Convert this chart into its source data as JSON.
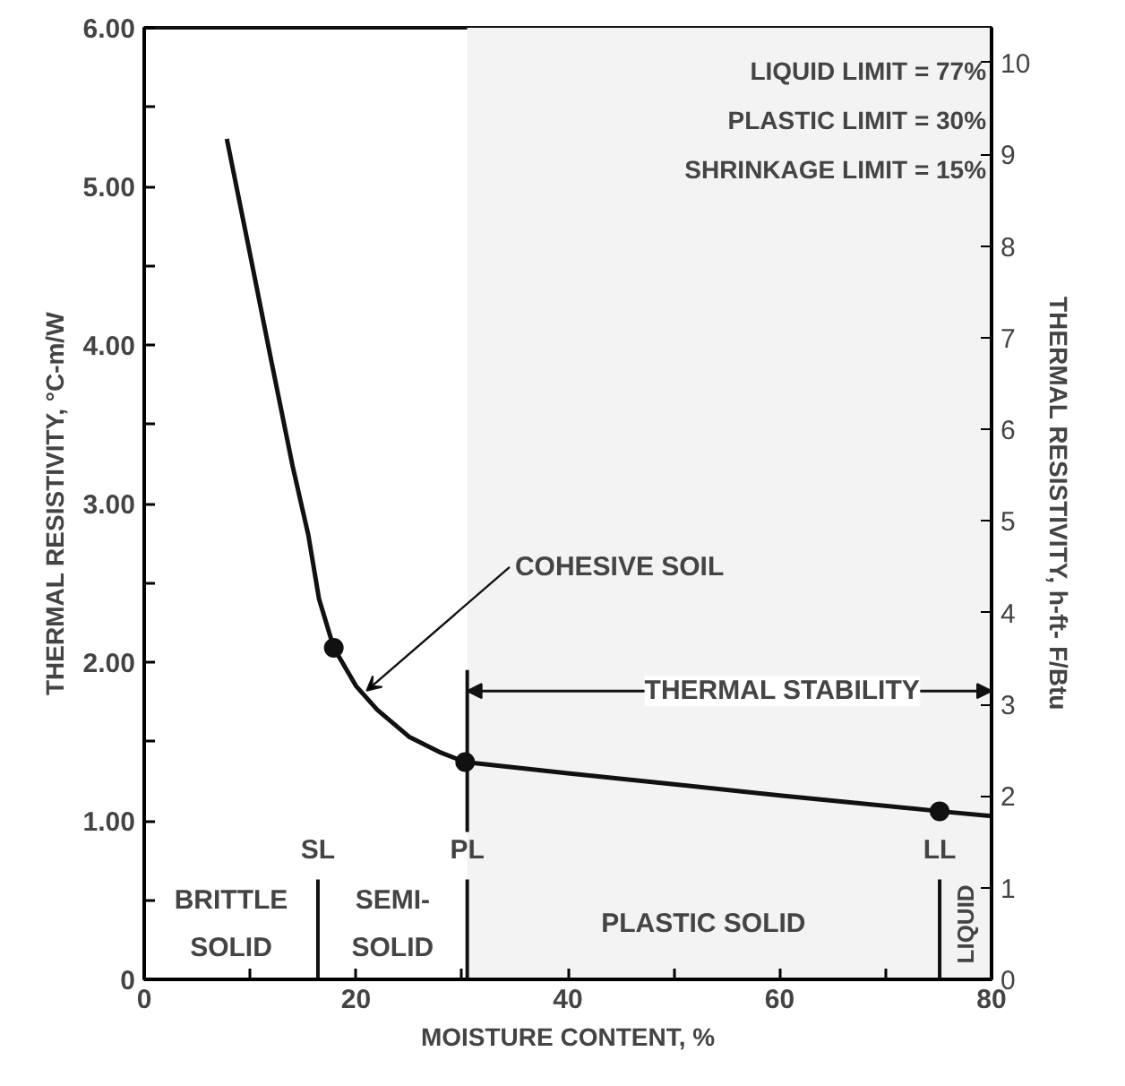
{
  "chart_data": {
    "type": "line",
    "xlabel": "MOISTURE CONTENT, %",
    "ylabel": "THERMAL RESISTIVITY, °C-m/W",
    "y2label": "THERMAL RESISTIVITY, h-ft- F/Btu",
    "xlim": [
      0,
      80
    ],
    "ylim": [
      0,
      6
    ],
    "y2lim": [
      0,
      10.38
    ],
    "xticks": [
      0,
      {
        "value": 10,
        "label": null
      },
      20,
      {
        "value": 30,
        "label": null
      },
      40,
      {
        "value": 50,
        "label": null
      },
      60,
      {
        "value": 70,
        "label": null
      },
      80
    ],
    "yticks": [
      0,
      {
        "value": 0.5,
        "label": null
      },
      {
        "value": 1,
        "label": "1.00"
      },
      {
        "value": 1.5,
        "label": null
      },
      {
        "value": 2,
        "label": "2.00"
      },
      {
        "value": 2.5,
        "label": null
      },
      {
        "value": 3,
        "label": "3.00"
      },
      {
        "value": 3.5,
        "label": null
      },
      {
        "value": 4,
        "label": "4.00"
      },
      {
        "value": 4.5,
        "label": null
      },
      {
        "value": 5,
        "label": "5.00"
      },
      {
        "value": 5.5,
        "label": null
      },
      {
        "value": 6,
        "label": "6.00"
      }
    ],
    "y2ticks": [
      0,
      1,
      2,
      3,
      4,
      5,
      6,
      7,
      8,
      9,
      10
    ],
    "grid": false,
    "series": [
      {
        "color": "#111111",
        "marker": "none",
        "line_style": "solid",
        "x": [
          7.8,
          10,
          12,
          14,
          15.5,
          16.5,
          17.9,
          20,
          22,
          25,
          28,
          30.3,
          40,
          50,
          60,
          75.1,
          80
        ],
        "values": [
          5.3,
          4.57,
          3.9,
          3.24,
          2.8,
          2.4,
          2.09,
          1.85,
          1.7,
          1.53,
          1.43,
          1.37,
          1.3,
          1.23,
          1.16,
          1.06,
          1.03
        ]
      },
      {
        "type": "scatter",
        "color": "#111111",
        "marker": "circle",
        "x": [
          17.9,
          30.3,
          75.1
        ],
        "values": [
          2.09,
          1.37,
          1.06
        ]
      }
    ],
    "ref_lines": [
      {
        "axis": "x",
        "value": 16.4,
        "label": "SL",
        "color": "#111111"
      },
      {
        "axis": "x",
        "value": 30.5,
        "label": "PL",
        "color": "#111111"
      },
      {
        "axis": "x",
        "value": 75.1,
        "label": "LL",
        "color": "#111111"
      }
    ],
    "bands": [
      {
        "axis": "x",
        "from": 30.5,
        "to": 80,
        "label": "THERMAL STABILITY",
        "color": "#f3f3f3"
      }
    ],
    "annotations": [
      "LIQUID LIMIT = 77%",
      "PLASTIC LIMIT = 30%",
      "SHRINKAGE LIMIT = 15%",
      {
        "text": "COHESIVE SOIL",
        "x": 21,
        "y": 1.82
      },
      "BRITTLE\nSOLID",
      "SEMI-\nSOLID",
      "PLASTIC SOLID",
      "LIQUID"
    ]
  }
}
